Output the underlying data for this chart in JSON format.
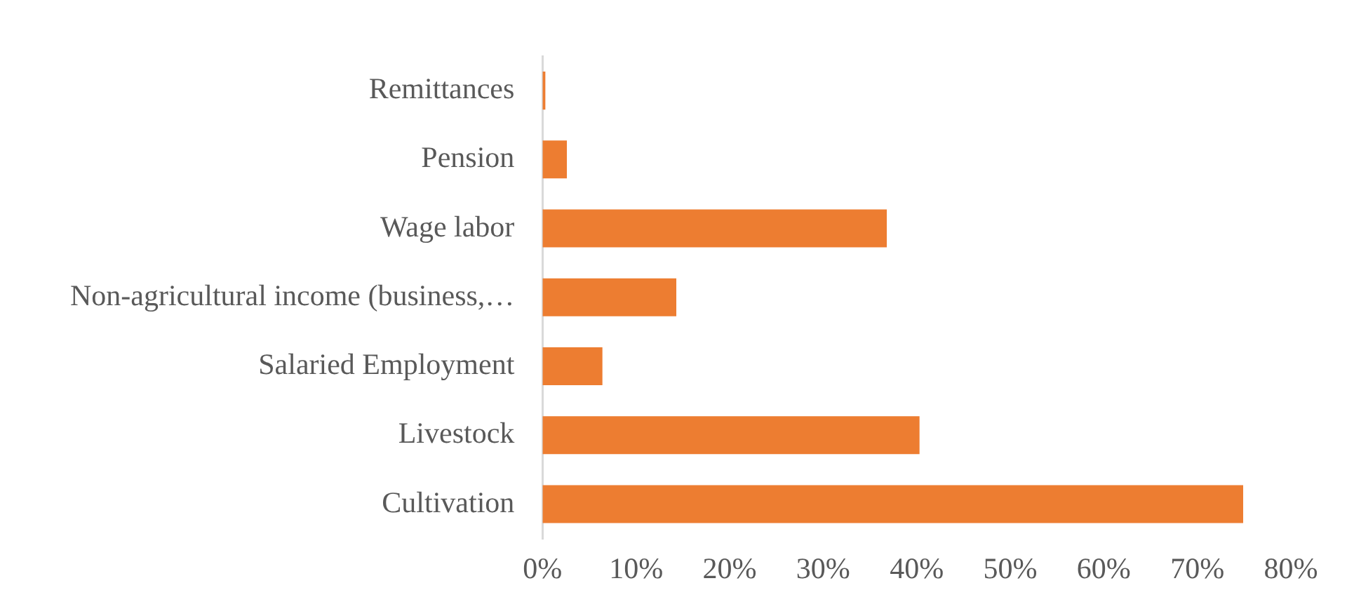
{
  "chart_data": {
    "type": "bar",
    "orientation": "horizontal",
    "categories": [
      "Remittances",
      "Pension",
      "Wage labor",
      "Non-agricultural income (business,…",
      "Salaried Employment",
      "Livestock",
      "Cultivation"
    ],
    "values": [
      0.3,
      2.6,
      36.8,
      14.3,
      6.4,
      40.3,
      74.9
    ],
    "color": "#ed7d31",
    "xlim": [
      0,
      80
    ],
    "xticks": [
      {
        "value": 0,
        "label": "0%"
      },
      {
        "value": 10,
        "label": "10%"
      },
      {
        "value": 20,
        "label": "20%"
      },
      {
        "value": 30,
        "label": "30%"
      },
      {
        "value": 40,
        "label": "40%"
      },
      {
        "value": 50,
        "label": "50%"
      },
      {
        "value": 60,
        "label": "60%"
      },
      {
        "value": 70,
        "label": "70%"
      },
      {
        "value": 80,
        "label": "80%"
      }
    ],
    "grid": false,
    "legend": false
  }
}
